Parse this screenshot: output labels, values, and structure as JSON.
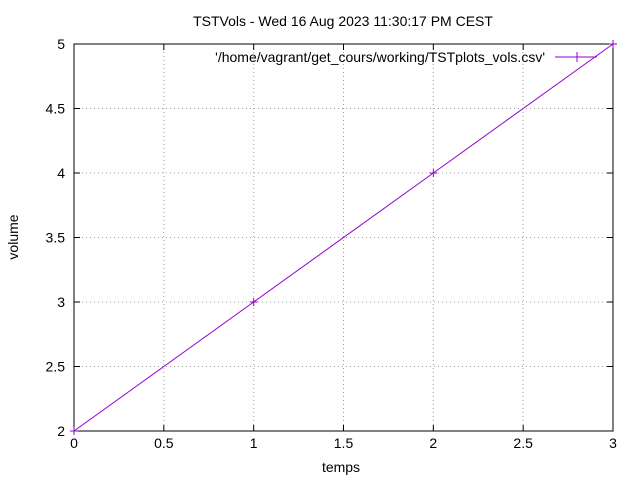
{
  "chart_data": {
    "type": "line",
    "title": "TSTVols - Wed 16 Aug 2023 11:30:17 PM CEST",
    "xlabel": "temps",
    "ylabel": "volume",
    "xlim": [
      0,
      3
    ],
    "ylim": [
      2,
      5
    ],
    "xticks": [
      0,
      0.5,
      1,
      1.5,
      2,
      2.5,
      3
    ],
    "xtick_labels": [
      "0",
      "0.5",
      "1",
      "1.5",
      "2",
      "2.5",
      "3"
    ],
    "yticks": [
      2,
      2.5,
      3,
      3.5,
      4,
      4.5,
      5
    ],
    "ytick_labels": [
      "2",
      "2.5",
      "3",
      "3.5",
      "4",
      "4.5",
      "5"
    ],
    "grid": true,
    "legend_position": "top-right",
    "series": [
      {
        "name": "'/home/vagrant/get_cours/working/TSTplots_vols.csv'",
        "color": "#9400d3",
        "marker": "plus",
        "x": [
          0,
          1,
          2,
          3
        ],
        "y": [
          2,
          3,
          4,
          5
        ]
      }
    ]
  }
}
